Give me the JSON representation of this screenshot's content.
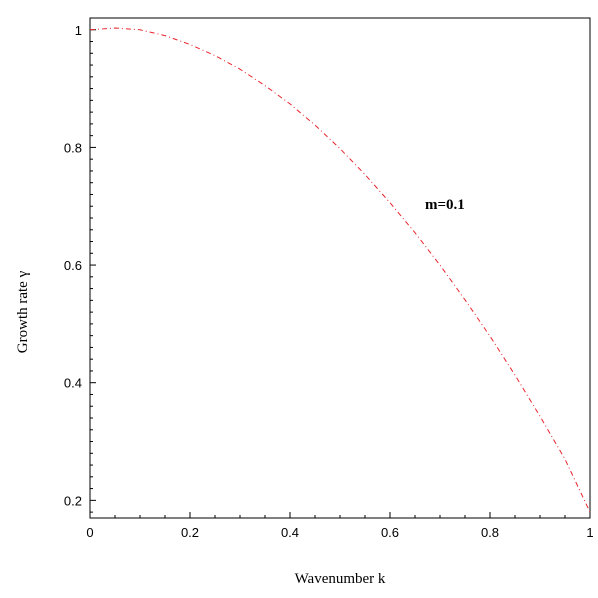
{
  "chart_data": {
    "type": "line",
    "title": "",
    "xlabel": "Wavenumber  k",
    "ylabel": "Growth rate    γ",
    "xlim": [
      0,
      1
    ],
    "ylim": [
      0.17,
      1.02
    ],
    "x_ticks": [
      0,
      0.2,
      0.4,
      0.6,
      0.8,
      1
    ],
    "x_tick_labels": [
      "0",
      "0.2",
      "0.4",
      "0.6",
      "0.8",
      "1"
    ],
    "y_ticks": [
      0.2,
      0.4,
      0.6,
      0.8,
      1
    ],
    "y_tick_labels": [
      "0.2",
      "0.4",
      "0.6",
      "0.8",
      "1"
    ],
    "grid": false,
    "series": [
      {
        "color": "#e8242c",
        "line_style": "dash-dot",
        "x": [
          0,
          0.05,
          0.1,
          0.15,
          0.2,
          0.25,
          0.3,
          0.35,
          0.4,
          0.45,
          0.5,
          0.55,
          0.6,
          0.65,
          0.7,
          0.75,
          0.8,
          0.85,
          0.9,
          0.95,
          1.0
        ],
        "y": [
          1.0,
          1.003,
          1.0,
          0.99,
          0.975,
          0.956,
          0.933,
          0.905,
          0.874,
          0.838,
          0.798,
          0.754,
          0.706,
          0.655,
          0.6,
          0.541,
          0.479,
          0.413,
          0.343,
          0.27,
          0.18
        ]
      }
    ],
    "annotations": [
      {
        "text": "m=0.1",
        "x": 0.67,
        "y": 0.695
      }
    ]
  }
}
